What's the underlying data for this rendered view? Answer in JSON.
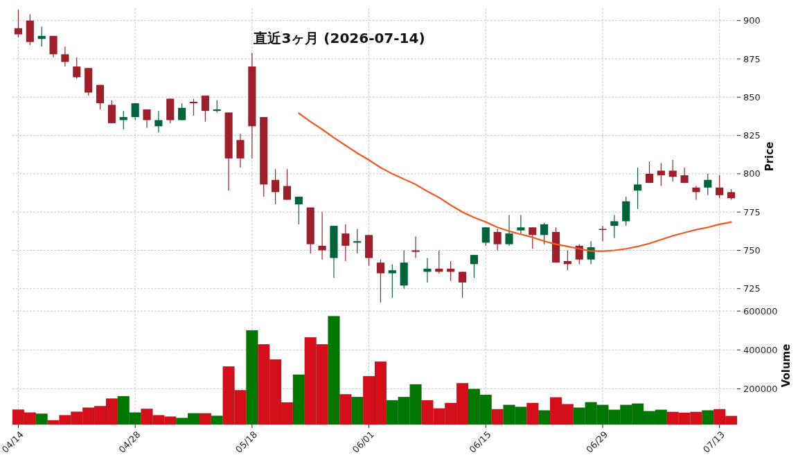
{
  "chart_data": [
    {
      "type": "candlestick",
      "title": "直近3ヶ月 (2026-07-14)",
      "ylabel": "Price",
      "grid": true,
      "tick_labels": "y",
      "categories": [
        null,
        null,
        null,
        null,
        null,
        null,
        null,
        null,
        null,
        null,
        null,
        null,
        null,
        null,
        null,
        null,
        null,
        null,
        null,
        null,
        null,
        null,
        null,
        null,
        null,
        null,
        null,
        null,
        null,
        null,
        null,
        null,
        null,
        null,
        null,
        null,
        null,
        null,
        null,
        null,
        null,
        null,
        null,
        null,
        null,
        null,
        null,
        null,
        null,
        null,
        null,
        null,
        null,
        null,
        null,
        null,
        null,
        null,
        null,
        null,
        null,
        null
      ],
      "ylim": [
        714.5,
        908
      ],
      "yticks": [
        725,
        750,
        775,
        800,
        825,
        850,
        875,
        900
      ],
      "ohlc": [
        [
          895,
          907,
          889,
          891
        ],
        [
          900,
          904,
          884,
          886
        ],
        [
          888,
          896,
          883,
          890
        ],
        [
          890,
          890,
          876,
          878
        ],
        [
          878,
          883,
          870,
          873
        ],
        [
          870,
          876,
          862,
          863
        ],
        [
          869,
          869,
          851,
          853
        ],
        [
          858,
          858,
          842,
          846
        ],
        [
          845,
          848,
          833,
          833
        ],
        [
          835,
          841,
          829,
          837
        ],
        [
          837,
          846,
          835,
          846
        ],
        [
          842,
          842,
          830,
          835
        ],
        [
          831,
          841,
          827,
          835
        ],
        [
          849,
          849,
          833,
          835
        ],
        [
          835,
          846,
          835,
          843
        ],
        [
          847,
          849,
          838,
          846
        ],
        [
          851,
          851,
          834,
          841
        ],
        [
          841,
          848,
          840,
          842
        ],
        [
          840,
          840,
          789,
          810
        ],
        [
          822,
          826,
          804,
          810
        ],
        [
          870,
          879,
          810,
          831
        ],
        [
          837,
          837,
          785,
          793
        ],
        [
          796,
          803,
          780,
          788
        ],
        [
          792,
          803,
          783,
          783
        ],
        [
          780,
          785,
          767,
          785
        ],
        [
          778,
          778,
          748,
          754
        ],
        [
          753,
          775,
          744,
          750
        ],
        [
          745,
          766,
          732,
          766
        ],
        [
          761,
          767,
          743,
          753
        ],
        [
          755,
          764,
          748,
          756
        ],
        [
          760,
          760,
          740,
          745
        ],
        [
          742,
          744,
          716,
          735
        ],
        [
          735,
          741,
          719,
          737
        ],
        [
          727,
          750,
          725,
          742
        ],
        [
          750,
          759,
          745,
          749
        ],
        [
          736,
          745,
          729,
          738
        ],
        [
          738,
          750,
          735,
          736
        ],
        [
          738,
          743,
          730,
          736
        ],
        [
          736,
          736,
          719,
          729
        ],
        [
          741,
          747,
          732,
          747
        ],
        [
          755,
          765,
          753,
          765
        ],
        [
          762,
          764,
          750,
          754
        ],
        [
          754,
          773,
          753,
          761
        ],
        [
          763,
          773,
          761,
          765
        ],
        [
          765,
          765,
          751,
          760
        ],
        [
          760,
          768,
          754,
          767
        ],
        [
          762,
          765,
          742,
          742
        ],
        [
          743,
          750,
          737,
          741
        ],
        [
          753,
          754,
          741,
          744
        ],
        [
          744,
          756,
          741,
          752
        ],
        [
          764,
          766,
          756,
          763.5
        ],
        [
          766,
          773,
          758,
          769
        ],
        [
          769,
          785,
          766,
          782
        ],
        [
          789,
          804,
          777,
          793
        ],
        [
          800,
          808,
          794,
          794
        ],
        [
          802,
          807,
          792,
          799
        ],
        [
          802,
          809,
          795,
          798
        ],
        [
          799,
          804,
          794,
          794
        ],
        [
          791,
          792,
          783,
          788
        ],
        [
          791,
          800,
          786,
          796
        ],
        [
          791,
          799,
          784,
          786
        ],
        [
          788,
          790,
          783,
          784
        ]
      ],
      "colors": [
        "#9e1f2a",
        "#9e1f2a",
        "#00643a",
        "#9e1f2a",
        "#9e1f2a",
        "#9e1f2a",
        "#9e1f2a",
        "#9e1f2a",
        "#9e1f2a",
        "#00643a",
        "#00643a",
        "#9e1f2a",
        "#00643a",
        "#9e1f2a",
        "#00643a",
        "#9e1f2a",
        "#9e1f2a",
        "#00643a",
        "#9e1f2a",
        "#9e1f2a",
        "#9e1f2a",
        "#9e1f2a",
        "#9e1f2a",
        "#9e1f2a",
        "#00643a",
        "#9e1f2a",
        "#9e1f2a",
        "#00643a",
        "#9e1f2a",
        "#00643a",
        "#9e1f2a",
        "#9e1f2a",
        "#00643a",
        "#00643a",
        "#9e1f2a",
        "#00643a",
        "#9e1f2a",
        "#9e1f2a",
        "#9e1f2a",
        "#00643a",
        "#00643a",
        "#9e1f2a",
        "#00643a",
        "#00643a",
        "#9e1f2a",
        "#00643a",
        "#9e1f2a",
        "#9e1f2a",
        "#9e1f2a",
        "#00643a",
        "#9e1f2a",
        "#00643a",
        "#00643a",
        "#00643a",
        "#9e1f2a",
        "#9e1f2a",
        "#9e1f2a",
        "#9e1f2a",
        "#9e1f2a",
        "#00643a",
        "#9e1f2a",
        "#9e1f2a"
      ],
      "series": [
        {
          "type": "line",
          "color": "#f4561b",
          "values": [
            null,
            null,
            null,
            null,
            null,
            null,
            null,
            null,
            null,
            null,
            null,
            null,
            null,
            null,
            null,
            null,
            null,
            null,
            null,
            null,
            null,
            null,
            null,
            null,
            839.5,
            834,
            829,
            823.5,
            818.5,
            813.5,
            809,
            804,
            800,
            796.5,
            793,
            788.5,
            784.5,
            779.5,
            775,
            771.5,
            768.5,
            765,
            762.5,
            760.5,
            758.5,
            756,
            754,
            752.5,
            751,
            749.5,
            749.5,
            750,
            751,
            752.5,
            754.5,
            757,
            759.5,
            761.5,
            763.5,
            765,
            767,
            768.5
          ]
        }
      ]
    },
    {
      "type": "bar",
      "ylabel": "Volume",
      "grid": true,
      "categories": [
        "04/14",
        null,
        null,
        null,
        null,
        null,
        null,
        null,
        null,
        null,
        "04/28",
        null,
        null,
        null,
        null,
        null,
        null,
        null,
        null,
        null,
        "05/18",
        null,
        null,
        null,
        null,
        null,
        null,
        null,
        null,
        null,
        "06/01",
        null,
        null,
        null,
        null,
        null,
        null,
        null,
        null,
        null,
        "06/15",
        null,
        null,
        null,
        null,
        null,
        null,
        null,
        null,
        null,
        "06/29",
        null,
        null,
        null,
        null,
        null,
        null,
        null,
        null,
        null,
        "07/13",
        null
      ],
      "ylim": [
        16000,
        622000
      ],
      "yticks": [
        200000,
        400000,
        600000
      ],
      "values": [
        93000,
        78000,
        72000,
        38000,
        64000,
        82000,
        103000,
        111000,
        150000,
        162000,
        78000,
        97000,
        64000,
        57000,
        50000,
        74000,
        74000,
        61000,
        315000,
        193000,
        501000,
        429000,
        351000,
        130000,
        273000,
        465000,
        429000,
        574000,
        172000,
        158000,
        265000,
        340000,
        141000,
        158000,
        223000,
        141000,
        99000,
        127000,
        229000,
        199000,
        169000,
        95000,
        117000,
        107000,
        127000,
        89000,
        156000,
        121000,
        103000,
        131000,
        117000,
        92000,
        117000,
        124000,
        85000,
        92000,
        81000,
        77000,
        81000,
        89000,
        95000,
        60000
      ],
      "colors": [
        "#d40f1a",
        "#d40f1a",
        "#007700",
        "#d40f1a",
        "#d40f1a",
        "#d40f1a",
        "#d40f1a",
        "#d40f1a",
        "#d40f1a",
        "#007700",
        "#007700",
        "#d40f1a",
        "#d40f1a",
        "#d40f1a",
        "#007700",
        "#007700",
        "#d40f1a",
        "#007700",
        "#d40f1a",
        "#d40f1a",
        "#007700",
        "#d40f1a",
        "#d40f1a",
        "#d40f1a",
        "#007700",
        "#d40f1a",
        "#d40f1a",
        "#007700",
        "#d40f1a",
        "#007700",
        "#d40f1a",
        "#d40f1a",
        "#007700",
        "#007700",
        "#007700",
        "#d40f1a",
        "#d40f1a",
        "#d40f1a",
        "#d40f1a",
        "#007700",
        "#007700",
        "#d40f1a",
        "#007700",
        "#007700",
        "#d40f1a",
        "#007700",
        "#d40f1a",
        "#d40f1a",
        "#007700",
        "#007700",
        "#007700",
        "#007700",
        "#007700",
        "#007700",
        "#007700",
        "#007700",
        "#d40f1a",
        "#d40f1a",
        "#d40f1a",
        "#007700",
        "#d40f1a",
        "#d40f1a"
      ]
    }
  ]
}
